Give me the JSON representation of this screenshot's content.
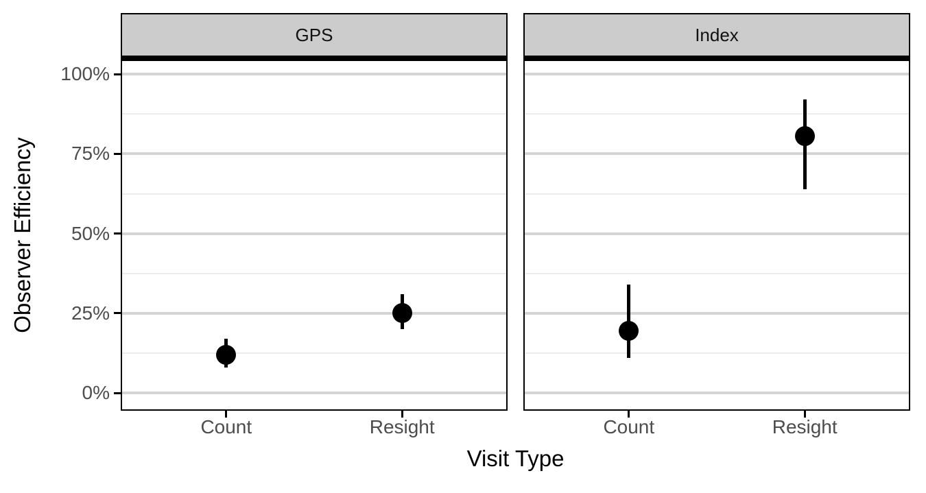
{
  "chart_data": {
    "type": "pointrange",
    "title": "",
    "xlabel": "Visit Type",
    "ylabel": "Observer Efficiency",
    "categories": [
      "Count",
      "Resight"
    ],
    "facets": [
      {
        "label": "GPS",
        "points": [
          {
            "category": "Count",
            "value": 12,
            "low": 8,
            "high": 17
          },
          {
            "category": "Resight",
            "value": 25,
            "low": 20,
            "high": 31
          }
        ]
      },
      {
        "label": "Index",
        "points": [
          {
            "category": "Count",
            "value": 19.5,
            "low": 11,
            "high": 34
          },
          {
            "category": "Resight",
            "value": 80.5,
            "low": 64,
            "high": 92
          }
        ]
      }
    ],
    "y_ticks": [
      {
        "value": 0,
        "label": "0%"
      },
      {
        "value": 25,
        "label": "25%"
      },
      {
        "value": 50,
        "label": "50%"
      },
      {
        "value": 75,
        "label": "75%"
      },
      {
        "value": 100,
        "label": "100%"
      }
    ],
    "y_minor_ticks": [
      12.5,
      37.5,
      62.5,
      87.5
    ],
    "ylim": [
      -5.1,
      104.1
    ],
    "grid": "major+minor",
    "legend": "none"
  },
  "colors": {
    "background": "#FFFFFF",
    "strip_fill": "#CCCCCC",
    "panel_border": "#000000",
    "major_grid": "#D4D4D4",
    "minor_grid": "#ECECEC",
    "axis_text": "#4D4D4D",
    "axis_title": "#000000",
    "point": "#000000"
  }
}
